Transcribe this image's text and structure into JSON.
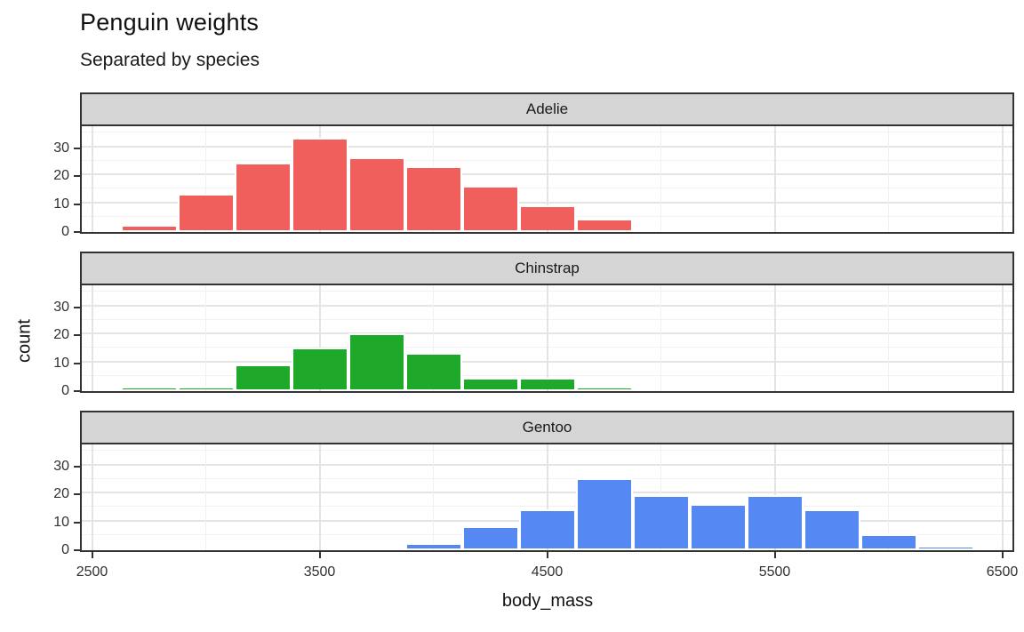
{
  "title": "Penguin weights",
  "subtitle": "Separated by species",
  "axes": {
    "x_label": "body_mass",
    "y_label": "count",
    "x_ticks": [
      2500,
      3500,
      4500,
      5500,
      6500
    ],
    "x_minor": [
      3000,
      4000,
      5000,
      6000
    ],
    "y_ticks": [
      0,
      10,
      20,
      30
    ],
    "y_minor": [
      5,
      15,
      25,
      35
    ],
    "y_max": 37.5
  },
  "theme": {
    "strip_fill": "#d5d5d5",
    "border_color": "#333333",
    "grid_major": "#e4e4e4",
    "grid_minor": "#f1f1f1",
    "bar_border": "#ffffff",
    "text_color": "#303030"
  },
  "chart_data": {
    "type": "bar",
    "subtype": "faceted-histogram",
    "binwidth": 250,
    "xlabel": "body_mass",
    "ylabel": "count",
    "xlim": [
      2450,
      6550
    ],
    "ylim": [
      0,
      37.5
    ],
    "grid": "on",
    "facets": [
      {
        "label": "Adelie",
        "color": "#F15F5C",
        "bins": [
          {
            "center": 2750,
            "count": 2
          },
          {
            "center": 3000,
            "count": 13
          },
          {
            "center": 3250,
            "count": 24
          },
          {
            "center": 3500,
            "count": 33
          },
          {
            "center": 3750,
            "count": 26
          },
          {
            "center": 4000,
            "count": 23
          },
          {
            "center": 4250,
            "count": 16
          },
          {
            "center": 4500,
            "count": 9
          },
          {
            "center": 4750,
            "count": 4
          }
        ]
      },
      {
        "label": "Chinstrap",
        "color": "#1FA92B",
        "bins": [
          {
            "center": 2750,
            "count": 1
          },
          {
            "center": 3000,
            "count": 1
          },
          {
            "center": 3250,
            "count": 9
          },
          {
            "center": 3500,
            "count": 15
          },
          {
            "center": 3750,
            "count": 20
          },
          {
            "center": 4000,
            "count": 13
          },
          {
            "center": 4250,
            "count": 4
          },
          {
            "center": 4500,
            "count": 4
          },
          {
            "center": 4750,
            "count": 1
          }
        ]
      },
      {
        "label": "Gentoo",
        "color": "#5588F2",
        "bins": [
          {
            "center": 4000,
            "count": 2
          },
          {
            "center": 4250,
            "count": 8
          },
          {
            "center": 4500,
            "count": 14
          },
          {
            "center": 4750,
            "count": 25
          },
          {
            "center": 5000,
            "count": 19
          },
          {
            "center": 5250,
            "count": 16
          },
          {
            "center": 5500,
            "count": 19
          },
          {
            "center": 5750,
            "count": 14
          },
          {
            "center": 6000,
            "count": 5
          },
          {
            "center": 6250,
            "count": 1
          }
        ]
      }
    ]
  }
}
